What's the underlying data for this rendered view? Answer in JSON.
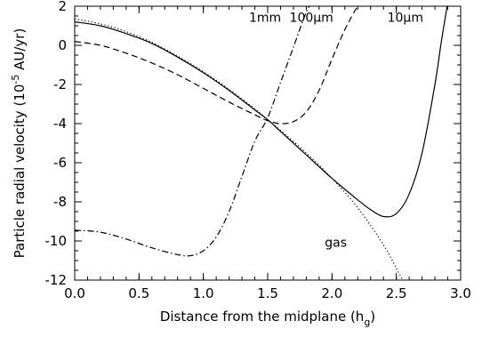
{
  "chart_data": {
    "type": "line",
    "xlabel": "Distance from the midplane (h",
    "xlabel_sub": "g",
    "xlabel_close": ")",
    "ylabel": "Particle radial velocity (10",
    "ylabel_sup": "-5",
    "ylabel_close": " AU/yr)",
    "xlim": [
      0.0,
      3.0
    ],
    "ylim": [
      -12,
      2
    ],
    "xticks": [
      0.0,
      0.5,
      1.0,
      1.5,
      2.0,
      2.5,
      3.0
    ],
    "xtick_labels": [
      "0.0",
      "0.5",
      "1.0",
      "1.5",
      "2.0",
      "2.5",
      "3.0"
    ],
    "yticks": [
      2,
      0,
      -2,
      -4,
      -6,
      -8,
      -10,
      -12
    ],
    "ytick_labels": [
      "2",
      "0",
      "-2",
      "-4",
      "-6",
      "-8",
      "-10",
      "-12"
    ],
    "grid": false,
    "series": [
      {
        "name": "10μm",
        "style": "solid",
        "x": [
          0.0,
          0.2,
          0.4,
          0.6,
          0.8,
          1.0,
          1.2,
          1.4,
          1.5,
          1.6,
          1.8,
          2.0,
          2.2,
          2.3,
          2.4,
          2.5,
          2.6,
          2.7,
          2.8,
          2.85,
          2.9
        ],
        "y": [
          1.2,
          1.0,
          0.6,
          0.1,
          -0.6,
          -1.4,
          -2.3,
          -3.3,
          -3.8,
          -4.4,
          -5.6,
          -6.8,
          -7.9,
          -8.4,
          -8.75,
          -8.6,
          -7.6,
          -5.5,
          -2.0,
          0.2,
          2.2
        ]
      },
      {
        "name": "100μm",
        "style": "dashed",
        "x": [
          0.0,
          0.2,
          0.4,
          0.6,
          0.8,
          1.0,
          1.2,
          1.4,
          1.5,
          1.6,
          1.7,
          1.8,
          1.9,
          2.0,
          2.1,
          2.2,
          2.25
        ],
        "y": [
          0.2,
          0.0,
          -0.4,
          -0.9,
          -1.5,
          -2.2,
          -2.9,
          -3.55,
          -3.85,
          -4.0,
          -3.9,
          -3.4,
          -2.3,
          -0.7,
          0.8,
          2.0,
          2.3
        ]
      },
      {
        "name": "1mm",
        "style": "dashdot",
        "x": [
          0.0,
          0.2,
          0.4,
          0.6,
          0.8,
          0.9,
          1.0,
          1.1,
          1.2,
          1.3,
          1.4,
          1.5,
          1.6,
          1.7,
          1.8,
          1.85
        ],
        "y": [
          -9.45,
          -9.55,
          -9.9,
          -10.35,
          -10.7,
          -10.75,
          -10.5,
          -9.8,
          -8.5,
          -6.7,
          -4.9,
          -3.7,
          -1.9,
          -0.1,
          1.7,
          2.2
        ]
      },
      {
        "name": "gas",
        "style": "dotted",
        "x": [
          0.0,
          0.2,
          0.4,
          0.6,
          0.8,
          1.0,
          1.2,
          1.4,
          1.5,
          1.6,
          1.8,
          2.0,
          2.2,
          2.4,
          2.5,
          2.55
        ],
        "y": [
          1.35,
          1.1,
          0.7,
          0.15,
          -0.55,
          -1.35,
          -2.25,
          -3.25,
          -3.8,
          -4.35,
          -5.5,
          -6.8,
          -8.3,
          -10.2,
          -11.4,
          -12.0
        ]
      }
    ],
    "curve_labels": [
      {
        "text": "1mm",
        "x": 1.48,
        "y": 1.2
      },
      {
        "text": "100μm",
        "x": 1.84,
        "y": 1.2
      },
      {
        "text": "10μm",
        "x": 2.57,
        "y": 1.2
      },
      {
        "text": "gas",
        "x": 2.03,
        "y": -10.3
      }
    ]
  }
}
